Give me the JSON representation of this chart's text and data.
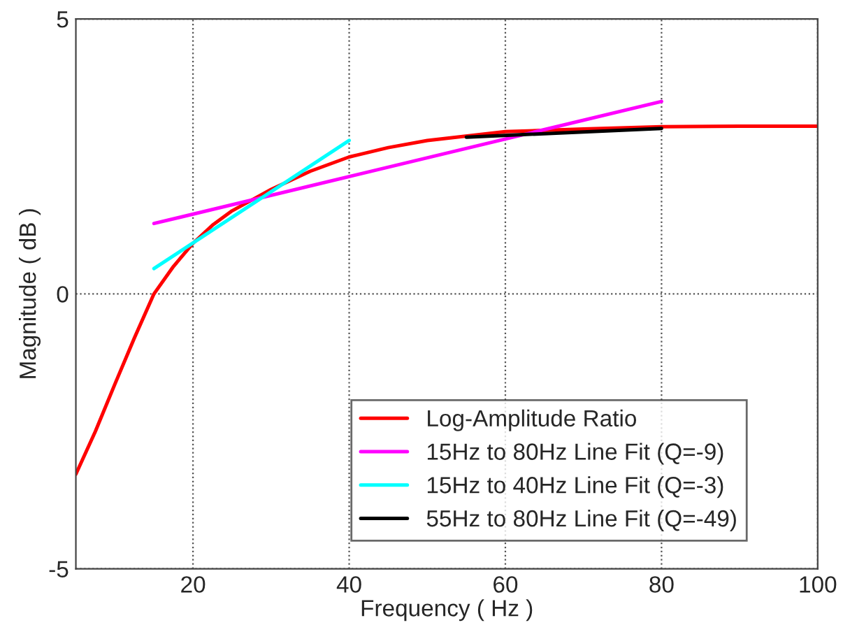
{
  "chart_data": {
    "type": "line",
    "xlabel": "Frequency ( Hz )",
    "ylabel": "Magnitude ( dB )",
    "xlim": [
      5,
      100
    ],
    "ylim": [
      -5,
      5
    ],
    "xticks": [
      20,
      40,
      60,
      80,
      100
    ],
    "yticks": [
      -5,
      0,
      5
    ],
    "grid": true,
    "legend": "bottom right",
    "series": [
      {
        "name": "Log-Amplitude Ratio",
        "color": "#ff0000",
        "x": [
          5,
          7.5,
          10,
          12.5,
          15,
          17.5,
          20,
          22.5,
          25,
          30,
          35,
          40,
          45,
          50,
          60,
          70,
          80,
          90,
          100
        ],
        "values": [
          -3.28,
          -2.5,
          -1.64,
          -0.8,
          0,
          0.5,
          0.92,
          1.25,
          1.51,
          1.9,
          2.23,
          2.49,
          2.66,
          2.79,
          2.95,
          3.0,
          3.04,
          3.05,
          3.05
        ]
      },
      {
        "name": "15Hz to 80Hz Line Fit (Q=-9)",
        "color": "#ff00ff",
        "x": [
          15,
          80
        ],
        "values": [
          1.28,
          3.5
        ]
      },
      {
        "name": "15Hz to 40Hz Line Fit (Q=-3)",
        "color": "#00ffff",
        "x": [
          15,
          40
        ],
        "values": [
          0.46,
          2.79
        ]
      },
      {
        "name": "55Hz to 80Hz Line Fit (Q=-49)",
        "color": "#000000",
        "x": [
          55,
          80
        ],
        "values": [
          2.85,
          3.01
        ]
      }
    ]
  }
}
